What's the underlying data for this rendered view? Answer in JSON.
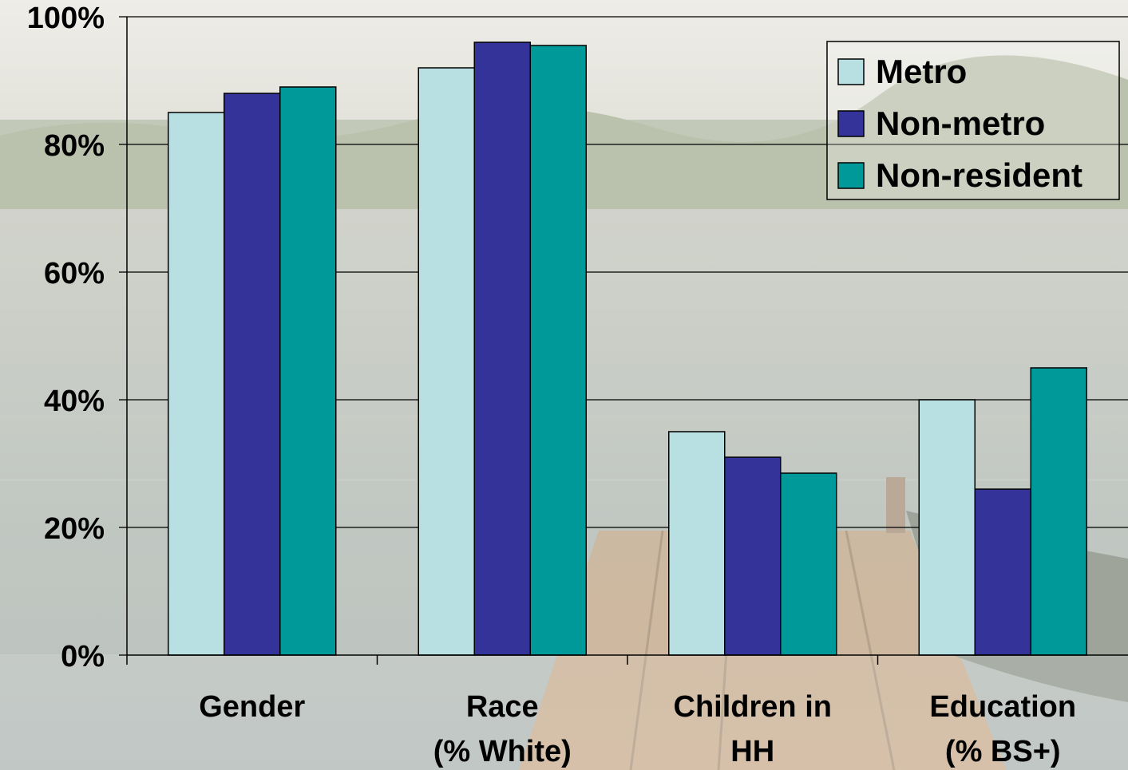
{
  "chart_data": {
    "type": "bar",
    "categories": [
      [
        "Gender"
      ],
      [
        "Race",
        "(% White)"
      ],
      [
        "Children in",
        "HH"
      ],
      [
        "Education",
        "(% BS+)"
      ]
    ],
    "series": [
      {
        "name": "Metro",
        "values": [
          85,
          92,
          35,
          40
        ],
        "color": "#b8dfe2"
      },
      {
        "name": "Non-metro",
        "values": [
          88,
          96,
          31,
          26
        ],
        "color": "#333399"
      },
      {
        "name": "Non-resident",
        "values": [
          89,
          95.5,
          28.5,
          45
        ],
        "color": "#009999"
      }
    ],
    "yticks": [
      "0%",
      "20%",
      "40%",
      "60%",
      "80%",
      "100%"
    ],
    "ylim": [
      0,
      100
    ],
    "grid": true,
    "legend": "top-right"
  }
}
